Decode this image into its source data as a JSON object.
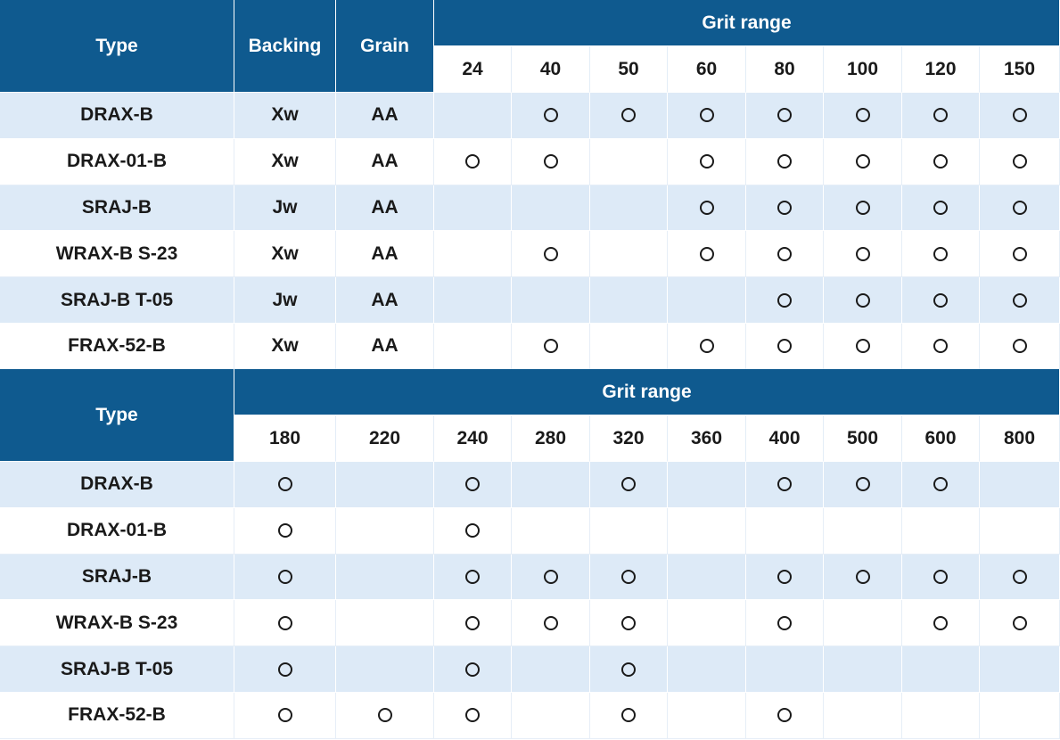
{
  "table1": {
    "header": {
      "type": "Type",
      "backing": "Backing",
      "grain": "Grain",
      "grit_range": "Grit range",
      "grits": [
        "24",
        "40",
        "50",
        "60",
        "80",
        "100",
        "120",
        "150"
      ]
    },
    "rows": [
      {
        "type": "DRAX-B",
        "backing": "Xw",
        "grain": "AA",
        "marks": [
          false,
          true,
          true,
          true,
          true,
          true,
          true,
          true
        ]
      },
      {
        "type": "DRAX-01-B",
        "backing": "Xw",
        "grain": "AA",
        "marks": [
          true,
          true,
          false,
          true,
          true,
          true,
          true,
          true
        ]
      },
      {
        "type": "SRAJ-B",
        "backing": "Jw",
        "grain": "AA",
        "marks": [
          false,
          false,
          false,
          true,
          true,
          true,
          true,
          true
        ]
      },
      {
        "type": "WRAX-B S-23",
        "backing": "Xw",
        "grain": "AA",
        "marks": [
          false,
          true,
          false,
          true,
          true,
          true,
          true,
          true
        ]
      },
      {
        "type": "SRAJ-B T-05",
        "backing": "Jw",
        "grain": "AA",
        "marks": [
          false,
          false,
          false,
          false,
          true,
          true,
          true,
          true
        ]
      },
      {
        "type": "FRAX-52-B",
        "backing": "Xw",
        "grain": "AA",
        "marks": [
          false,
          true,
          false,
          true,
          true,
          true,
          true,
          true
        ]
      }
    ]
  },
  "table2": {
    "header": {
      "type": "Type",
      "grit_range": "Grit range",
      "grits": [
        "180",
        "220",
        "240",
        "280",
        "320",
        "360",
        "400",
        "500",
        "600",
        "800"
      ]
    },
    "rows": [
      {
        "type": "DRAX-B",
        "marks": [
          true,
          false,
          true,
          false,
          true,
          false,
          true,
          true,
          true,
          false
        ]
      },
      {
        "type": "DRAX-01-B",
        "marks": [
          true,
          false,
          true,
          false,
          false,
          false,
          false,
          false,
          false,
          false
        ]
      },
      {
        "type": "SRAJ-B",
        "marks": [
          true,
          false,
          true,
          true,
          true,
          false,
          true,
          true,
          true,
          true
        ]
      },
      {
        "type": "WRAX-B S-23",
        "marks": [
          true,
          false,
          true,
          true,
          true,
          false,
          true,
          false,
          true,
          true
        ]
      },
      {
        "type": "SRAJ-B T-05",
        "marks": [
          true,
          false,
          true,
          false,
          true,
          false,
          false,
          false,
          false,
          false
        ]
      },
      {
        "type": "FRAX-52-B",
        "marks": [
          true,
          true,
          true,
          false,
          true,
          false,
          true,
          false,
          false,
          false
        ]
      }
    ]
  },
  "mark_icon": "circle-icon",
  "colors": {
    "header": "#0f5a8f",
    "stripe": "#ddeaf7",
    "white": "#ffffff"
  }
}
